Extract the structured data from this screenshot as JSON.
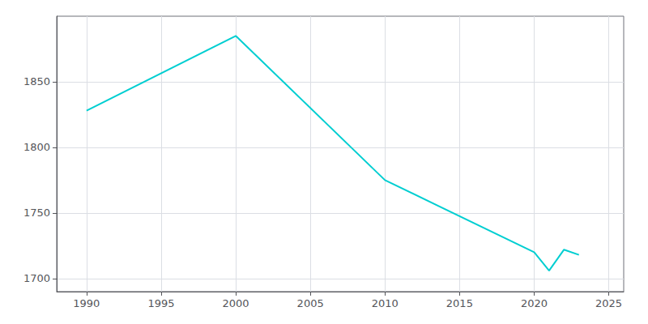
{
  "chart_data": {
    "type": "line",
    "x": [
      1990,
      2000,
      2010,
      2020,
      2021,
      2022,
      2023
    ],
    "values": [
      1828,
      1885,
      1775,
      1720,
      1706,
      1722,
      1718
    ],
    "color": "#00CED1",
    "xlim": [
      1988,
      2026
    ],
    "ylim": [
      1690,
      1900
    ],
    "xticks": [
      1990,
      1995,
      2000,
      2005,
      2010,
      2015,
      2020,
      2025
    ],
    "yticks": [
      1700,
      1750,
      1800,
      1850
    ],
    "grid": true
  }
}
